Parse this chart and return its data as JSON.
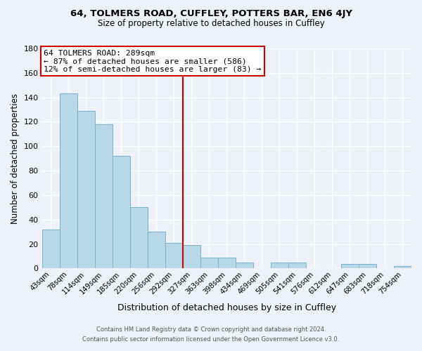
{
  "title": "64, TOLMERS ROAD, CUFFLEY, POTTERS BAR, EN6 4JY",
  "subtitle": "Size of property relative to detached houses in Cuffley",
  "xlabel": "Distribution of detached houses by size in Cuffley",
  "ylabel": "Number of detached properties",
  "bar_color": "#b8d8e8",
  "bar_edge_color": "#7ab0c8",
  "background_color": "#eef2f8",
  "grid_color": "#ffffff",
  "categories": [
    "43sqm",
    "78sqm",
    "114sqm",
    "149sqm",
    "185sqm",
    "220sqm",
    "256sqm",
    "292sqm",
    "327sqm",
    "363sqm",
    "398sqm",
    "434sqm",
    "469sqm",
    "505sqm",
    "541sqm",
    "576sqm",
    "612sqm",
    "647sqm",
    "683sqm",
    "718sqm",
    "754sqm"
  ],
  "values": [
    32,
    143,
    129,
    118,
    92,
    50,
    30,
    21,
    19,
    9,
    9,
    5,
    0,
    5,
    5,
    0,
    0,
    4,
    4,
    0,
    2
  ],
  "vline_x": 7.5,
  "vline_color": "#cc0000",
  "annotation_title": "64 TOLMERS ROAD: 289sqm",
  "annotation_line1": "← 87% of detached houses are smaller (586)",
  "annotation_line2": "12% of semi-detached houses are larger (83) →",
  "annotation_box_color": "#ffffff",
  "annotation_box_edge": "#cc0000",
  "ylim": [
    0,
    180
  ],
  "yticks": [
    0,
    20,
    40,
    60,
    80,
    100,
    120,
    140,
    160,
    180
  ],
  "footer_line1": "Contains HM Land Registry data © Crown copyright and database right 2024.",
  "footer_line2": "Contains public sector information licensed under the Open Government Licence v3.0."
}
